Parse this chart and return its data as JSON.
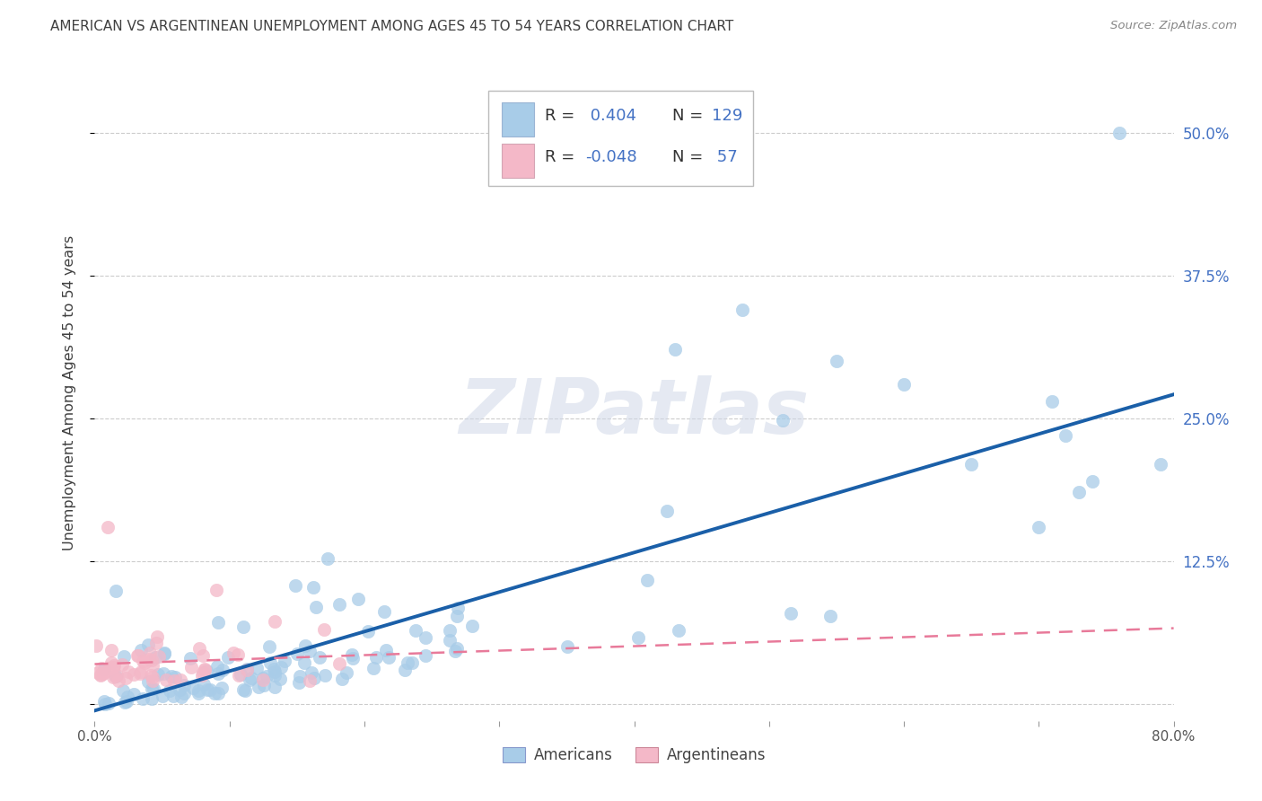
{
  "title": "AMERICAN VS ARGENTINEAN UNEMPLOYMENT AMONG AGES 45 TO 54 YEARS CORRELATION CHART",
  "source": "Source: ZipAtlas.com",
  "ylabel": "Unemployment Among Ages 45 to 54 years",
  "xlim": [
    0.0,
    0.8
  ],
  "ylim": [
    -0.015,
    0.56
  ],
  "xticks": [
    0.0,
    0.1,
    0.2,
    0.3,
    0.4,
    0.5,
    0.6,
    0.7,
    0.8
  ],
  "yticks": [
    0.0,
    0.125,
    0.25,
    0.375,
    0.5
  ],
  "americans_R": 0.404,
  "americans_N": 129,
  "argentineans_R": -0.048,
  "argentineans_N": 57,
  "blue_scatter_color": "#a8cce8",
  "pink_scatter_color": "#f4b8c8",
  "blue_line_color": "#1a5fa8",
  "pink_line_color": "#e87a9a",
  "blue_legend_color": "#4472c4",
  "pink_legend_color": "#f4b8c8",
  "watermark_color": "#d0d8e8",
  "watermark": "ZIPatlas",
  "background_color": "#ffffff",
  "grid_color": "#cccccc",
  "title_color": "#404040",
  "axis_label_color": "#404040",
  "right_ytick_color": "#4472c4",
  "r_value_color": "#4472c4",
  "seed_americans": 42,
  "seed_argentineans": 123
}
